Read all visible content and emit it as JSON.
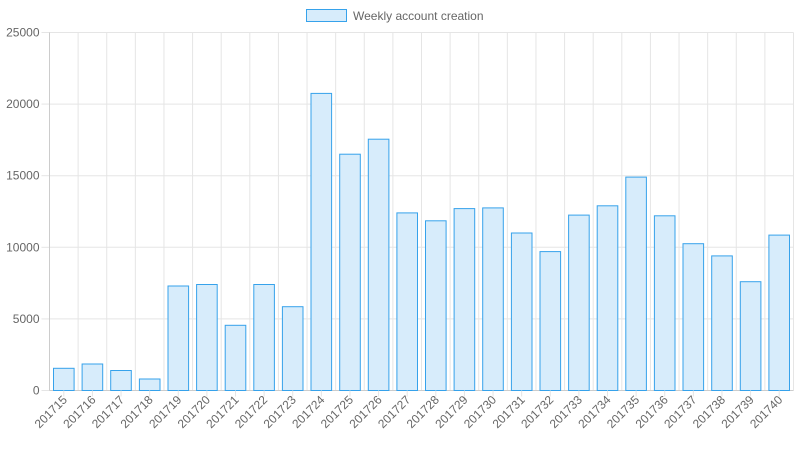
{
  "chart_data": {
    "type": "bar",
    "categories": [
      "201715",
      "201716",
      "201717",
      "201718",
      "201719",
      "201720",
      "201721",
      "201722",
      "201723",
      "201724",
      "201725",
      "201726",
      "201727",
      "201728",
      "201729",
      "201730",
      "201731",
      "201732",
      "201733",
      "201734",
      "201735",
      "201736",
      "201737",
      "201738",
      "201739",
      "201740"
    ],
    "series": [
      {
        "name": "Weekly account creation",
        "values": [
          1550,
          1850,
          1400,
          800,
          7300,
          7400,
          4550,
          7400,
          5850,
          20750,
          16500,
          17550,
          12400,
          11850,
          12700,
          12750,
          11000,
          9700,
          12250,
          12900,
          14900,
          12200,
          10250,
          9400,
          7600,
          10850
        ]
      }
    ],
    "title": "",
    "xlabel": "",
    "ylabel": "",
    "ylim": [
      0,
      25000
    ],
    "yticks": [
      "0",
      "5000",
      "10000",
      "15000",
      "20000",
      "25000"
    ],
    "grid": true,
    "legend_position": "top-center",
    "colors": {
      "bar_fill": "#d7ecfb",
      "bar_stroke": "#36a2eb",
      "grid": "#e5e5e5",
      "text": "#666666"
    }
  }
}
